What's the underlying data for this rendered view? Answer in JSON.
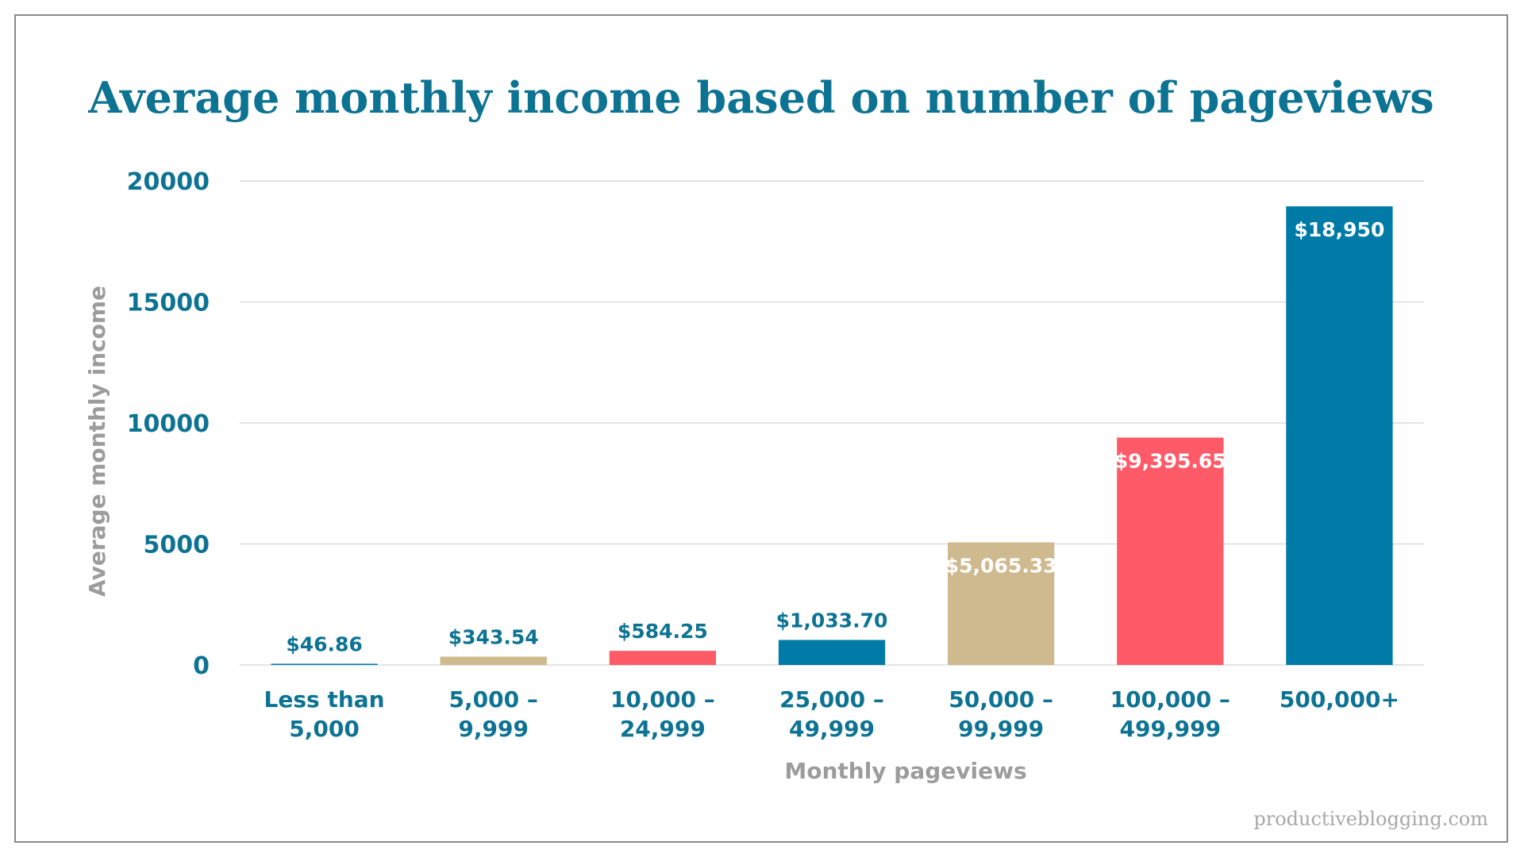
{
  "chart_data": {
    "type": "bar",
    "title": "Average monthly income based on number of pageviews",
    "xlabel": "Monthly pageviews",
    "ylabel": "Average monthly income",
    "ylim": [
      0,
      20000
    ],
    "yticks": [
      "0",
      "5000",
      "10000",
      "15000",
      "20000"
    ],
    "grid": true,
    "categories": [
      [
        "Less than",
        "5,000"
      ],
      [
        "5,000 –",
        "9,999"
      ],
      [
        "10,000 –",
        "24,999"
      ],
      [
        "25,000 –",
        "49,999"
      ],
      [
        "50,000 –",
        "99,999"
      ],
      [
        "100,000 –",
        "499,999"
      ],
      [
        "500,000+"
      ]
    ],
    "values": [
      46.86,
      343.54,
      584.25,
      1033.7,
      5065.33,
      9395.65,
      18950
    ],
    "data_labels": [
      "$46.86",
      "$343.54",
      "$584.25",
      "$1,033.70",
      "$5,065.33",
      "$9,395.65",
      "$18,950"
    ],
    "bar_colors": [
      "#007ba7",
      "#cfb98e",
      "#ff5a68",
      "#007ba7",
      "#cfb98e",
      "#ff5a68",
      "#007ba7"
    ]
  },
  "watermark": "productiveblogging.com",
  "colors": {
    "title": "#0d7393",
    "tick": "#0d7393",
    "axis_label": "#9c9c9c",
    "grid": "#dcdcdc",
    "watermark": "#a8a8a8",
    "label_outside": "#0d7393",
    "label_inside": "#ffffff"
  }
}
